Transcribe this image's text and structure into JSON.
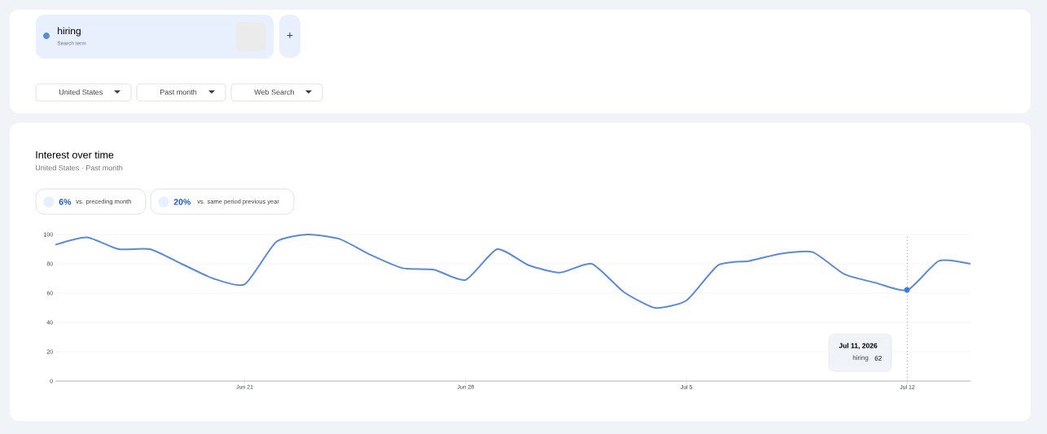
{
  "chart_data": {
    "type": "line",
    "title": "Interest over time",
    "subtitle": "United States · Past month",
    "x": [
      "2026-06-15",
      "2026-06-16",
      "2026-06-17",
      "2026-06-18",
      "2026-06-19",
      "2026-06-20",
      "2026-06-21",
      "2026-06-22",
      "2026-06-23",
      "2026-06-24",
      "2026-06-25",
      "2026-06-26",
      "2026-06-27",
      "2026-06-28",
      "2026-06-29",
      "2026-06-30",
      "2026-07-01",
      "2026-07-02",
      "2026-07-03",
      "2026-07-04",
      "2026-07-05",
      "2026-07-06",
      "2026-07-07",
      "2026-07-08",
      "2026-07-09",
      "2026-07-10",
      "2026-07-11",
      "2026-07-12",
      "2026-07-13",
      "2026-07-14"
    ],
    "series": [
      {
        "name": "hiring",
        "color": "#5b8bd6",
        "values": [
          93,
          98,
          90,
          90,
          80,
          70,
          66,
          95,
          100,
          97,
          86,
          77,
          76,
          69,
          90,
          79,
          74,
          80,
          61,
          50,
          55,
          79,
          82,
          87,
          88,
          73,
          67,
          62,
          82,
          80
        ]
      }
    ],
    "xlim": [
      "2026-06-15",
      "2026-07-14"
    ],
    "xticks": [
      {
        "value": "2026-06-21",
        "label": "Jun 21"
      },
      {
        "value": "2026-06-28",
        "label": "Jun 28"
      },
      {
        "value": "2026-07-05",
        "label": "Jul 5"
      },
      {
        "value": "2026-07-12",
        "label": "Jul 12"
      }
    ],
    "ylim": [
      0,
      100
    ],
    "yticks": [
      0,
      20,
      40,
      60,
      80,
      100
    ],
    "grid": "y",
    "legend": "top left",
    "marker": "none",
    "line_style": "solid",
    "ref_lines": [
      {
        "axis": "x",
        "value": "2026-07-12",
        "line_style": "dotted",
        "color": "#bbbbbb"
      }
    ],
    "annotations": [
      "Search term",
      "United States",
      "Past month",
      "Web Search",
      "6%",
      "vs. preceding month",
      "20%",
      "vs. same period previous year",
      "Jul 11, 2026",
      "hiring",
      "62",
      "+"
    ]
  }
}
